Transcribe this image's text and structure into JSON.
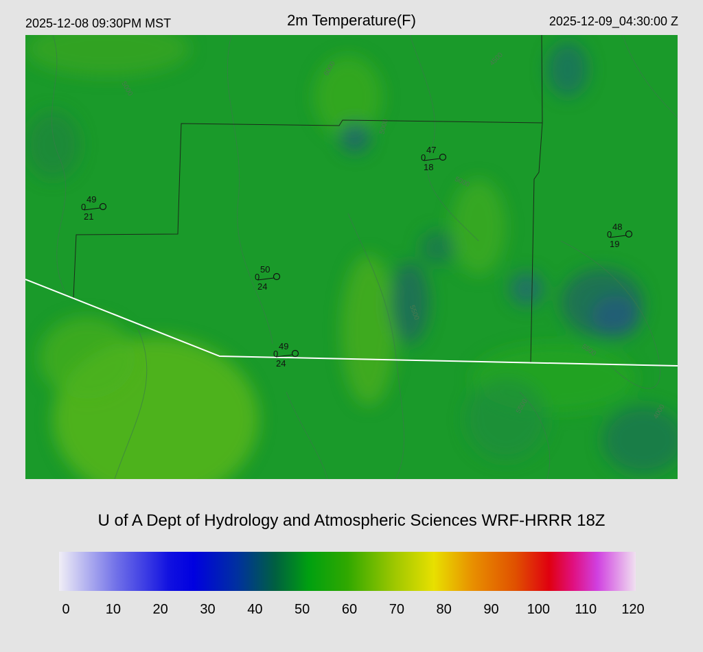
{
  "header": {
    "local_time": "2025-12-08 09:30PM MST",
    "title": "2m Temperature(F)",
    "utc_time": "2025-12-09_04:30:00 Z"
  },
  "footer": {
    "credit": "U of A Dept of Hydrology and Atmospheric Sciences WRF-HRRR 18Z"
  },
  "colorbar": {
    "ticks": [
      "0",
      "10",
      "20",
      "30",
      "40",
      "50",
      "60",
      "70",
      "80",
      "90",
      "100",
      "110",
      "120"
    ],
    "range": [
      0,
      120
    ],
    "stops": [
      {
        "v": 0,
        "c": "#f0eef6"
      },
      {
        "v": 12,
        "c": "#7070e8"
      },
      {
        "v": 23,
        "c": "#1010e0"
      },
      {
        "v": 28,
        "c": "#0000e0"
      },
      {
        "v": 37,
        "c": "#0030a0"
      },
      {
        "v": 45,
        "c": "#006040"
      },
      {
        "v": 52,
        "c": "#00a010"
      },
      {
        "v": 60,
        "c": "#30a800"
      },
      {
        "v": 70,
        "c": "#a0c800"
      },
      {
        "v": 78,
        "c": "#e8e000"
      },
      {
        "v": 86,
        "c": "#e89000"
      },
      {
        "v": 95,
        "c": "#e05000"
      },
      {
        "v": 102,
        "c": "#e00010"
      },
      {
        "v": 107,
        "c": "#e01080"
      },
      {
        "v": 112,
        "c": "#d040e0"
      },
      {
        "v": 120,
        "c": "#f0e0f0"
      }
    ]
  },
  "contour_labels": [
    "5000",
    "5500",
    "6000",
    "4500",
    "4000"
  ],
  "stations": [
    {
      "id": "st1",
      "temp": "49",
      "dew": "21",
      "wind": "0"
    },
    {
      "id": "st2",
      "temp": "47",
      "dew": "18",
      "wind": "0"
    },
    {
      "id": "st3",
      "temp": "48",
      "dew": "19",
      "wind": "0"
    },
    {
      "id": "st4",
      "temp": "50",
      "dew": "24",
      "wind": "0"
    },
    {
      "id": "st5",
      "temp": "49",
      "dew": "24",
      "wind": "0"
    }
  ]
}
